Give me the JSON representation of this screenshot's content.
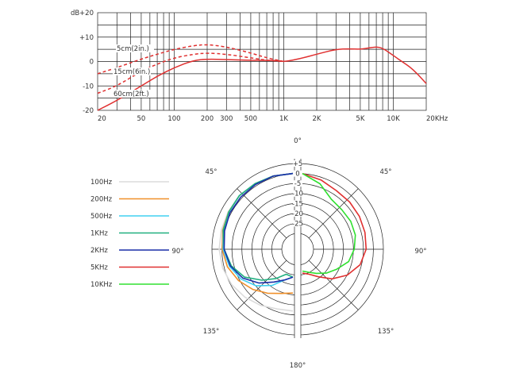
{
  "chart_data": [
    {
      "type": "line",
      "xscale": "log",
      "xlim": [
        20,
        20000
      ],
      "ylim": [
        -20,
        20
      ],
      "y_unit": "dB",
      "y_ticks": [
        "+20",
        "+10",
        "0",
        "-10",
        "-20"
      ],
      "y_tick_values": [
        20,
        10,
        0,
        -10,
        -20
      ],
      "x_ticks": [
        "20",
        "50",
        "100",
        "200",
        "300",
        "500",
        "1K",
        "2K",
        "5K",
        "10K",
        "20KHz"
      ],
      "x_tick_values": [
        20,
        50,
        100,
        200,
        300,
        500,
        1000,
        2000,
        5000,
        10000,
        20000
      ],
      "grid": true,
      "color": "#e03030",
      "series": [
        {
          "name": "5cm(2in.)",
          "style": "dashed",
          "x": [
            20,
            30,
            50,
            70,
            100,
            150,
            200,
            300,
            500,
            700,
            1000
          ],
          "y": [
            -5,
            -2.5,
            1,
            3,
            5,
            6.5,
            7,
            6,
            3.5,
            1.5,
            0
          ]
        },
        {
          "name": "15cm(6in.)",
          "style": "dashed",
          "x": [
            20,
            30,
            50,
            70,
            100,
            150,
            200,
            300,
            500,
            700,
            1000
          ],
          "y": [
            -13,
            -10,
            -4,
            -1,
            1.5,
            3,
            3.5,
            3,
            1.5,
            0.5,
            0
          ]
        },
        {
          "name": "60cm(2ft.)",
          "style": "solid",
          "x": [
            20,
            30,
            50,
            70,
            100,
            150,
            200,
            300,
            500,
            700,
            900,
            1000,
            1200,
            1500,
            2000,
            3000,
            4000,
            5000,
            6000,
            7000,
            8000,
            10000,
            12000,
            15000,
            20000
          ],
          "y": [
            -20,
            -16,
            -10,
            -6,
            -2.5,
            0.5,
            1,
            0.8,
            0.5,
            0.5,
            0.3,
            0,
            0.5,
            1.5,
            3,
            5,
            5.2,
            5,
            5.6,
            6,
            5.5,
            2.5,
            0,
            -3,
            -9
          ]
        }
      ]
    },
    {
      "type": "polar",
      "r_ticks": [
        "+5",
        "0",
        "-5",
        "-10",
        "-15",
        "-20",
        "-25"
      ],
      "r_tick_values": [
        5,
        0,
        -5,
        -10,
        -15,
        -20,
        -25
      ],
      "r_range": [
        -30,
        5
      ],
      "angle_labels": [
        "0°",
        "45°",
        "45°",
        "90°",
        "90°",
        "135°",
        "135°",
        "180°"
      ],
      "legend": {
        "placement": "left",
        "entries": [
          {
            "name": "100Hz",
            "color": "#dcdcdc"
          },
          {
            "name": "200Hz",
            "color": "#f0902a"
          },
          {
            "name": "500Hz",
            "color": "#40d0f0"
          },
          {
            "name": "1KHz",
            "color": "#20b080"
          },
          {
            "name": "2KHz",
            "color": "#1a2fa8"
          },
          {
            "name": "5KHz",
            "color": "#e03030"
          },
          {
            "name": "10KHz",
            "color": "#30e030"
          }
        ]
      },
      "series": [
        {
          "name": "100Hz",
          "side": "left",
          "color": "#dcdcdc",
          "theta": [
            0,
            15,
            30,
            45,
            60,
            75,
            90,
            105,
            120,
            135,
            150,
            165,
            180
          ],
          "r": [
            0,
            0,
            0,
            0,
            -0.5,
            -0.8,
            -1,
            -1.5,
            -2.5,
            -4,
            -5.5,
            -7,
            -7
          ]
        },
        {
          "name": "200Hz",
          "side": "left",
          "color": "#f0902a",
          "theta": [
            0,
            15,
            30,
            45,
            60,
            75,
            90,
            105,
            120,
            135,
            150,
            165,
            180
          ],
          "r": [
            0,
            0,
            0,
            0,
            -0.7,
            -1.5,
            -2.5,
            -4,
            -6.5,
            -9.5,
            -12.5,
            -15,
            -16
          ]
        },
        {
          "name": "500Hz",
          "side": "left",
          "color": "#40d0f0",
          "theta": [
            0,
            15,
            30,
            45,
            60,
            75,
            90,
            105,
            120,
            135,
            150,
            165,
            180
          ],
          "r": [
            0,
            0,
            0,
            0,
            -0.8,
            -1.8,
            -3,
            -5,
            -8,
            -12,
            -17,
            -22,
            -24
          ]
        },
        {
          "name": "1KHz",
          "side": "left",
          "color": "#20b080",
          "theta": [
            0,
            15,
            30,
            45,
            60,
            75,
            90,
            105,
            120,
            135,
            150,
            165,
            180
          ],
          "r": [
            0,
            0,
            0,
            0,
            -0.8,
            -1.8,
            -3.5,
            -6,
            -10,
            -16,
            -21,
            -25,
            -24
          ]
        },
        {
          "name": "2KHz",
          "side": "left",
          "color": "#1a2fa8",
          "theta": [
            0,
            15,
            30,
            45,
            60,
            75,
            90,
            105,
            120,
            135,
            150,
            165,
            180
          ],
          "r": [
            0,
            0,
            -0.5,
            -1,
            -1.5,
            -2.5,
            -3.5,
            -5.5,
            -9,
            -14,
            -19,
            -22,
            -24
          ]
        },
        {
          "name": "5KHz",
          "side": "right",
          "color": "#e03030",
          "theta": [
            0,
            15,
            30,
            45,
            60,
            75,
            90,
            105,
            120,
            135,
            150,
            165,
            180
          ],
          "r": [
            0,
            -2,
            -4,
            -4.5,
            -5,
            -5.5,
            -6,
            -8,
            -12,
            -17,
            -22,
            -25,
            -26
          ]
        },
        {
          "name": "10KHz",
          "side": "right",
          "color": "#30e030",
          "theta": [
            0,
            15,
            30,
            45,
            60,
            75,
            90,
            105,
            120,
            135,
            150,
            165,
            180
          ],
          "r": [
            0,
            -4,
            -9,
            -10,
            -10,
            -10.5,
            -12,
            -14,
            -18,
            -21,
            -24,
            -26,
            -27
          ]
        }
      ]
    }
  ]
}
